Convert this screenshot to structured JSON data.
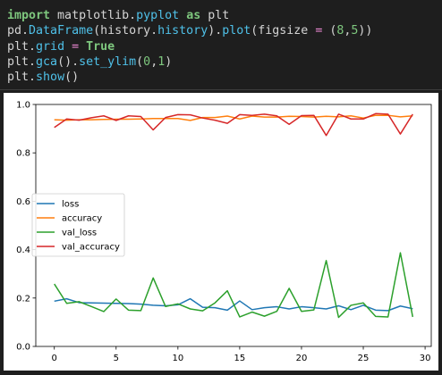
{
  "code_cell": {
    "lines": [
      [
        {
          "t": "import",
          "c": "kw"
        },
        {
          "t": " matplotlib",
          "c": "mod"
        },
        {
          "t": ".",
          "c": "plain"
        },
        {
          "t": "pyplot",
          "c": "attr"
        },
        {
          "t": " ",
          "c": "plain"
        },
        {
          "t": "as",
          "c": "kw"
        },
        {
          "t": " plt",
          "c": "plain"
        }
      ],
      [
        {
          "t": "pd",
          "c": "plain"
        },
        {
          "t": ".",
          "c": "plain"
        },
        {
          "t": "DataFrame",
          "c": "attr"
        },
        {
          "t": "(history",
          "c": "plain"
        },
        {
          "t": ".",
          "c": "plain"
        },
        {
          "t": "history",
          "c": "attr"
        },
        {
          "t": ")",
          "c": "plain"
        },
        {
          "t": ".",
          "c": "plain"
        },
        {
          "t": "plot",
          "c": "attr"
        },
        {
          "t": "(figsize ",
          "c": "plain"
        },
        {
          "t": "=",
          "c": "op"
        },
        {
          "t": " (",
          "c": "plain"
        },
        {
          "t": "8",
          "c": "num"
        },
        {
          "t": ",",
          "c": "plain"
        },
        {
          "t": "5",
          "c": "num"
        },
        {
          "t": "))",
          "c": "plain"
        }
      ],
      [
        {
          "t": "plt",
          "c": "plain"
        },
        {
          "t": ".",
          "c": "plain"
        },
        {
          "t": "grid",
          "c": "attr"
        },
        {
          "t": " ",
          "c": "plain"
        },
        {
          "t": "=",
          "c": "op"
        },
        {
          "t": " ",
          "c": "plain"
        },
        {
          "t": "True",
          "c": "kw"
        }
      ],
      [
        {
          "t": "plt",
          "c": "plain"
        },
        {
          "t": ".",
          "c": "plain"
        },
        {
          "t": "gca",
          "c": "attr"
        },
        {
          "t": "()",
          "c": "plain"
        },
        {
          "t": ".",
          "c": "plain"
        },
        {
          "t": "set_ylim",
          "c": "attr"
        },
        {
          "t": "(",
          "c": "plain"
        },
        {
          "t": "0",
          "c": "num"
        },
        {
          "t": ",",
          "c": "plain"
        },
        {
          "t": "1",
          "c": "num"
        },
        {
          "t": ")",
          "c": "plain"
        }
      ],
      [
        {
          "t": "plt",
          "c": "plain"
        },
        {
          "t": ".",
          "c": "plain"
        },
        {
          "t": "show",
          "c": "attr"
        },
        {
          "t": "()",
          "c": "plain"
        }
      ]
    ]
  },
  "chart_data": {
    "type": "line",
    "title": "",
    "xlabel": "",
    "ylabel": "",
    "xlim": [
      -1.5,
      30.5
    ],
    "ylim": [
      0,
      1
    ],
    "xticks": [
      0,
      5,
      10,
      15,
      20,
      25,
      30
    ],
    "yticks": [
      0.0,
      0.2,
      0.4,
      0.6,
      0.8,
      1.0
    ],
    "ytick_labels": [
      "0.0",
      "0.2",
      "0.4",
      "0.6",
      "0.8",
      "1.0"
    ],
    "grid": false,
    "legend_position": "center-left",
    "x": [
      0,
      1,
      2,
      3,
      4,
      5,
      6,
      7,
      8,
      9,
      10,
      11,
      12,
      13,
      14,
      15,
      16,
      17,
      18,
      19,
      20,
      21,
      22,
      23,
      24,
      25,
      26,
      27,
      28,
      29
    ],
    "series": [
      {
        "name": "loss",
        "color": "#1f77b4",
        "values": [
          0.187,
          0.197,
          0.181,
          0.18,
          0.179,
          0.178,
          0.177,
          0.175,
          0.17,
          0.168,
          0.172,
          0.197,
          0.162,
          0.16,
          0.15,
          0.188,
          0.152,
          0.16,
          0.164,
          0.155,
          0.164,
          0.16,
          0.155,
          0.168,
          0.152,
          0.17,
          0.15,
          0.148,
          0.167,
          0.156
        ]
      },
      {
        "name": "accuracy",
        "color": "#ff7f0e",
        "values": [
          0.937,
          0.935,
          0.937,
          0.937,
          0.938,
          0.939,
          0.939,
          0.94,
          0.942,
          0.942,
          0.942,
          0.934,
          0.946,
          0.946,
          0.952,
          0.94,
          0.952,
          0.948,
          0.948,
          0.951,
          0.95,
          0.948,
          0.951,
          0.949,
          0.953,
          0.944,
          0.955,
          0.955,
          0.949,
          0.953
        ]
      },
      {
        "name": "val_loss",
        "color": "#2ca02c",
        "values": [
          0.258,
          0.178,
          0.185,
          0.165,
          0.144,
          0.196,
          0.15,
          0.148,
          0.283,
          0.165,
          0.176,
          0.155,
          0.147,
          0.18,
          0.23,
          0.122,
          0.142,
          0.125,
          0.145,
          0.24,
          0.145,
          0.151,
          0.355,
          0.12,
          0.17,
          0.18,
          0.124,
          0.122,
          0.387,
          0.122
        ]
      },
      {
        "name": "val_accuracy",
        "color": "#d62728",
        "values": [
          0.905,
          0.94,
          0.935,
          0.945,
          0.953,
          0.934,
          0.953,
          0.95,
          0.895,
          0.946,
          0.958,
          0.957,
          0.944,
          0.935,
          0.922,
          0.958,
          0.955,
          0.96,
          0.953,
          0.918,
          0.954,
          0.955,
          0.872,
          0.96,
          0.94,
          0.94,
          0.962,
          0.96,
          0.878,
          0.96
        ]
      }
    ]
  }
}
